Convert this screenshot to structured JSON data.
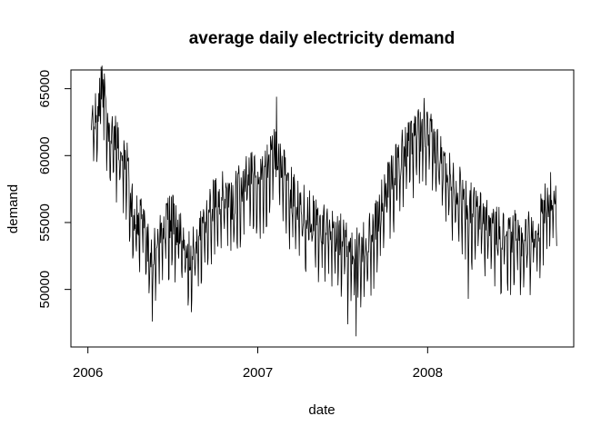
{
  "chart_data": {
    "type": "line",
    "title": "average daily electricity demand",
    "xlabel": "date",
    "ylabel": "demand",
    "x_ticks": [
      {
        "value": 2006.0,
        "label": "2006"
      },
      {
        "value": 2007.0,
        "label": "2007"
      },
      {
        "value": 2008.0,
        "label": "2008"
      }
    ],
    "y_ticks": [
      {
        "value": 50000,
        "label": "50000"
      },
      {
        "value": 55000,
        "label": "55000"
      },
      {
        "value": 60000,
        "label": "60000"
      },
      {
        "value": 65000,
        "label": "65000"
      }
    ],
    "xlim": [
      2005.9,
      2008.86
    ],
    "ylim": [
      45700,
      66400
    ],
    "grid": false,
    "line_color": "#000000",
    "series": [
      {
        "name": "demand",
        "x_start": 2006.02,
        "x_end": 2008.76,
        "anchors": [
          {
            "t": 2006.02,
            "v": 61500
          },
          {
            "t": 2006.05,
            "v": 62500
          },
          {
            "t": 2006.08,
            "v": 64500
          },
          {
            "t": 2006.1,
            "v": 63500
          },
          {
            "t": 2006.13,
            "v": 61000
          },
          {
            "t": 2006.17,
            "v": 60500
          },
          {
            "t": 2006.2,
            "v": 60000
          },
          {
            "t": 2006.23,
            "v": 59000
          },
          {
            "t": 2006.25,
            "v": 56500
          },
          {
            "t": 2006.28,
            "v": 54500
          },
          {
            "t": 2006.32,
            "v": 55000
          },
          {
            "t": 2006.35,
            "v": 52500
          },
          {
            "t": 2006.38,
            "v": 51500
          },
          {
            "t": 2006.42,
            "v": 53500
          },
          {
            "t": 2006.45,
            "v": 54500
          },
          {
            "t": 2006.5,
            "v": 54500
          },
          {
            "t": 2006.55,
            "v": 53000
          },
          {
            "t": 2006.6,
            "v": 52000
          },
          {
            "t": 2006.65,
            "v": 53000
          },
          {
            "t": 2006.7,
            "v": 55000
          },
          {
            "t": 2006.75,
            "v": 56000
          },
          {
            "t": 2006.8,
            "v": 56500
          },
          {
            "t": 2006.85,
            "v": 56000
          },
          {
            "t": 2006.9,
            "v": 57000
          },
          {
            "t": 2006.95,
            "v": 58000
          },
          {
            "t": 2007.0,
            "v": 57500
          },
          {
            "t": 2007.05,
            "v": 58500
          },
          {
            "t": 2007.1,
            "v": 59500
          },
          {
            "t": 2007.15,
            "v": 58000
          },
          {
            "t": 2007.2,
            "v": 56500
          },
          {
            "t": 2007.25,
            "v": 55500
          },
          {
            "t": 2007.3,
            "v": 55000
          },
          {
            "t": 2007.35,
            "v": 54500
          },
          {
            "t": 2007.4,
            "v": 54000
          },
          {
            "t": 2007.45,
            "v": 53500
          },
          {
            "t": 2007.5,
            "v": 53000
          },
          {
            "t": 2007.55,
            "v": 52500
          },
          {
            "t": 2007.6,
            "v": 52000
          },
          {
            "t": 2007.65,
            "v": 53000
          },
          {
            "t": 2007.7,
            "v": 54500
          },
          {
            "t": 2007.75,
            "v": 56500
          },
          {
            "t": 2007.8,
            "v": 58000
          },
          {
            "t": 2007.85,
            "v": 59500
          },
          {
            "t": 2007.9,
            "v": 60500
          },
          {
            "t": 2007.95,
            "v": 61000
          },
          {
            "t": 2008.0,
            "v": 61000
          },
          {
            "t": 2008.05,
            "v": 60000
          },
          {
            "t": 2008.1,
            "v": 58500
          },
          {
            "t": 2008.15,
            "v": 57500
          },
          {
            "t": 2008.2,
            "v": 56500
          },
          {
            "t": 2008.25,
            "v": 55500
          },
          {
            "t": 2008.3,
            "v": 55000
          },
          {
            "t": 2008.35,
            "v": 54500
          },
          {
            "t": 2008.4,
            "v": 54000
          },
          {
            "t": 2008.45,
            "v": 53500
          },
          {
            "t": 2008.5,
            "v": 53500
          },
          {
            "t": 2008.55,
            "v": 53000
          },
          {
            "t": 2008.6,
            "v": 53500
          },
          {
            "t": 2008.65,
            "v": 54000
          },
          {
            "t": 2008.7,
            "v": 56000
          },
          {
            "t": 2008.76,
            "v": 57000
          }
        ],
        "notable_points": [
          {
            "t": 2006.09,
            "v": 65700
          },
          {
            "t": 2006.38,
            "v": 47600
          },
          {
            "t": 2006.61,
            "v": 48300
          },
          {
            "t": 2007.11,
            "v": 64400
          },
          {
            "t": 2007.53,
            "v": 47400
          },
          {
            "t": 2007.58,
            "v": 46500
          },
          {
            "t": 2007.98,
            "v": 64300
          },
          {
            "t": 2008.24,
            "v": 49300
          },
          {
            "t": 2008.43,
            "v": 49700
          }
        ],
        "daily_noise_amplitude": 2600
      }
    ]
  }
}
